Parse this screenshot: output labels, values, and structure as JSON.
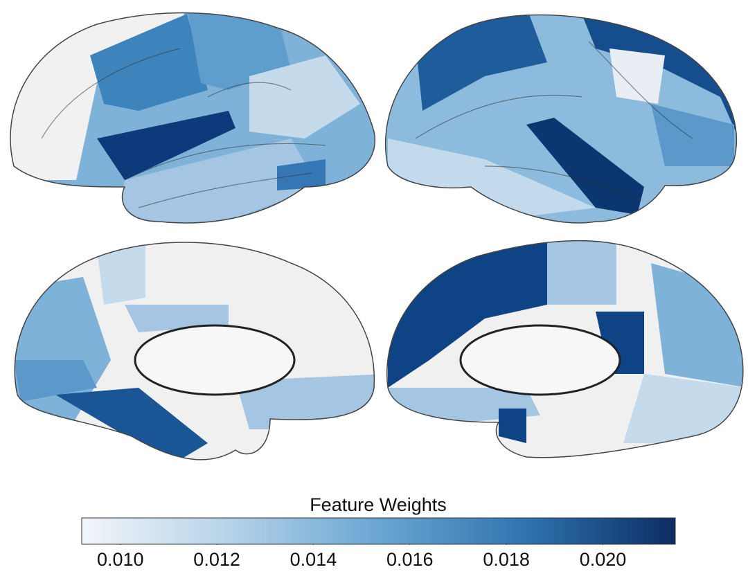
{
  "chart_data": {
    "type": "colorbar",
    "title": "Feature Weights",
    "xlim": [
      0.0092,
      0.0215
    ],
    "xticks": [
      {
        "value": 0.01,
        "label": "0.010"
      },
      {
        "value": 0.012,
        "label": "0.012"
      },
      {
        "value": 0.014,
        "label": "0.014"
      },
      {
        "value": 0.016,
        "label": "0.016"
      },
      {
        "value": 0.018,
        "label": "0.018"
      },
      {
        "value": 0.02,
        "label": "0.020"
      }
    ],
    "colormap": [
      "#f2f6fa",
      "#b5d2e8",
      "#6aa6d2",
      "#2f73ae",
      "#0b2c63"
    ]
  }
}
